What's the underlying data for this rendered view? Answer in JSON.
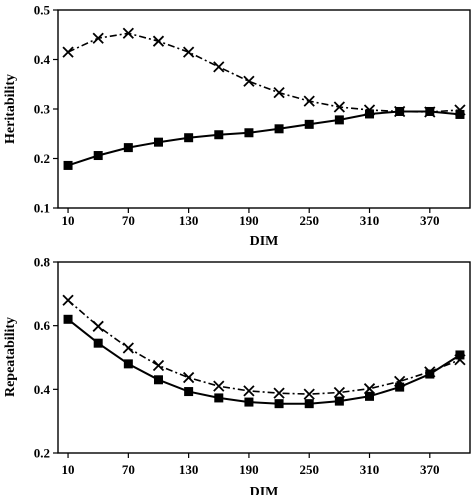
{
  "chart_data": [
    {
      "type": "line",
      "title": "",
      "xlabel": "DIM",
      "ylabel": "Heritability",
      "x": [
        10,
        40,
        70,
        100,
        130,
        160,
        190,
        220,
        250,
        280,
        310,
        340,
        370,
        400
      ],
      "xticks": [
        "10",
        "70",
        "130",
        "190",
        "250",
        "310",
        "370"
      ],
      "xtick_values": [
        10,
        70,
        130,
        190,
        250,
        310,
        370
      ],
      "yticks": [
        "0.1",
        "0.2",
        "0.3",
        "0.4",
        "0.5"
      ],
      "ylim": [
        0.1,
        0.5
      ],
      "xlim": [
        0,
        410
      ],
      "grid": false,
      "series": [
        {
          "marker": "square",
          "line_style": "solid",
          "values": [
            0.186,
            0.206,
            0.222,
            0.233,
            0.242,
            0.248,
            0.252,
            0.26,
            0.269,
            0.278,
            0.29,
            0.295,
            0.295,
            0.289
          ]
        },
        {
          "marker": "x",
          "line_style": "dash-dot",
          "values": [
            0.415,
            0.443,
            0.453,
            0.437,
            0.415,
            0.385,
            0.356,
            0.333,
            0.316,
            0.304,
            0.298,
            0.295,
            0.294,
            0.298
          ]
        }
      ]
    },
    {
      "type": "line",
      "title": "",
      "xlabel": "DIM",
      "ylabel": "Repeatability",
      "x": [
        10,
        40,
        70,
        100,
        130,
        160,
        190,
        220,
        250,
        280,
        310,
        340,
        370,
        400
      ],
      "xticks": [
        "10",
        "70",
        "130",
        "190",
        "250",
        "310",
        "370"
      ],
      "xtick_values": [
        10,
        70,
        130,
        190,
        250,
        310,
        370
      ],
      "yticks": [
        "0.2",
        "0.4",
        "0.6",
        "0.8"
      ],
      "ylim": [
        0.2,
        0.8
      ],
      "xlim": [
        0,
        410
      ],
      "grid": false,
      "series": [
        {
          "marker": "square",
          "line_style": "solid",
          "values": [
            0.62,
            0.545,
            0.48,
            0.43,
            0.393,
            0.373,
            0.36,
            0.355,
            0.355,
            0.363,
            0.378,
            0.407,
            0.448,
            0.508
          ]
        },
        {
          "marker": "x",
          "line_style": "dash-dot",
          "values": [
            0.68,
            0.598,
            0.53,
            0.475,
            0.437,
            0.41,
            0.395,
            0.388,
            0.385,
            0.39,
            0.402,
            0.425,
            0.455,
            0.493
          ]
        }
      ]
    }
  ]
}
